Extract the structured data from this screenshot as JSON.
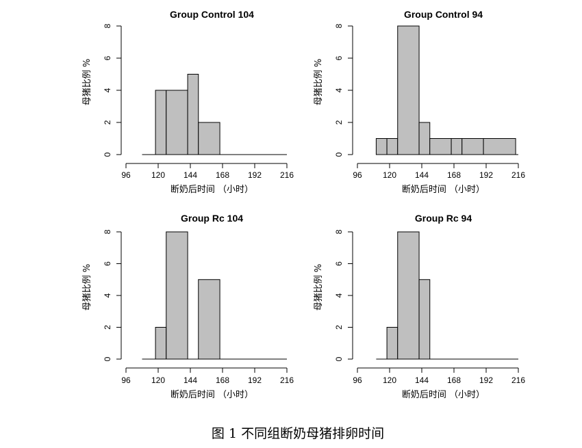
{
  "caption": "图 1 不同组断奶母猪排卵时间",
  "chart_data": [
    {
      "type": "bar",
      "title": "Group Control 104",
      "xlabel": "断奶后时间 （小时）",
      "ylabel": "母猪比例 %",
      "xticks": [
        96,
        120,
        144,
        168,
        192,
        216
      ],
      "yticks": [
        0,
        2,
        4,
        6,
        8
      ],
      "xlim": [
        96,
        216
      ],
      "ylim": [
        0,
        8
      ],
      "baseline": [
        108,
        216
      ],
      "bins": [
        {
          "x0": 118,
          "x1": 126,
          "value": 4
        },
        {
          "x0": 126,
          "x1": 142,
          "value": 4
        },
        {
          "x0": 142,
          "x1": 150,
          "value": 5
        },
        {
          "x0": 150,
          "x1": 166,
          "value": 2
        }
      ]
    },
    {
      "type": "bar",
      "title": "Group Control 94",
      "xlabel": "断奶后时间 （小时）",
      "ylabel": "母猪比例 %",
      "xticks": [
        96,
        120,
        144,
        168,
        192,
        216
      ],
      "yticks": [
        0,
        2,
        4,
        6,
        8
      ],
      "xlim": [
        96,
        216
      ],
      "ylim": [
        0,
        8
      ],
      "baseline": [
        110,
        216
      ],
      "bins": [
        {
          "x0": 110,
          "x1": 118,
          "value": 1
        },
        {
          "x0": 118,
          "x1": 126,
          "value": 1
        },
        {
          "x0": 126,
          "x1": 142,
          "value": 8
        },
        {
          "x0": 142,
          "x1": 150,
          "value": 2
        },
        {
          "x0": 150,
          "x1": 166,
          "value": 1
        },
        {
          "x0": 166,
          "x1": 174,
          "value": 1
        },
        {
          "x0": 174,
          "x1": 190,
          "value": 1
        },
        {
          "x0": 190,
          "x1": 214,
          "value": 1
        }
      ]
    },
    {
      "type": "bar",
      "title": "Group Rc 104",
      "xlabel": "断奶后时间 （小时）",
      "ylabel": "母猪比例 %",
      "xticks": [
        96,
        120,
        144,
        168,
        192,
        216
      ],
      "yticks": [
        0,
        2,
        4,
        6,
        8
      ],
      "xlim": [
        96,
        216
      ],
      "ylim": [
        0,
        8
      ],
      "baseline": [
        108,
        216
      ],
      "bins": [
        {
          "x0": 118,
          "x1": 126,
          "value": 2
        },
        {
          "x0": 126,
          "x1": 142,
          "value": 8
        },
        {
          "x0": 150,
          "x1": 166,
          "value": 5
        }
      ]
    },
    {
      "type": "bar",
      "title": "Group Rc 94",
      "xlabel": "断奶后时间 （小时）",
      "ylabel": "母猪比例 %",
      "xticks": [
        96,
        120,
        144,
        168,
        192,
        216
      ],
      "yticks": [
        0,
        2,
        4,
        6,
        8
      ],
      "xlim": [
        96,
        216
      ],
      "ylim": [
        0,
        8
      ],
      "baseline": [
        110,
        216
      ],
      "bins": [
        {
          "x0": 118,
          "x1": 126,
          "value": 2
        },
        {
          "x0": 126,
          "x1": 142,
          "value": 8
        },
        {
          "x0": 142,
          "x1": 150,
          "value": 5
        }
      ]
    }
  ]
}
